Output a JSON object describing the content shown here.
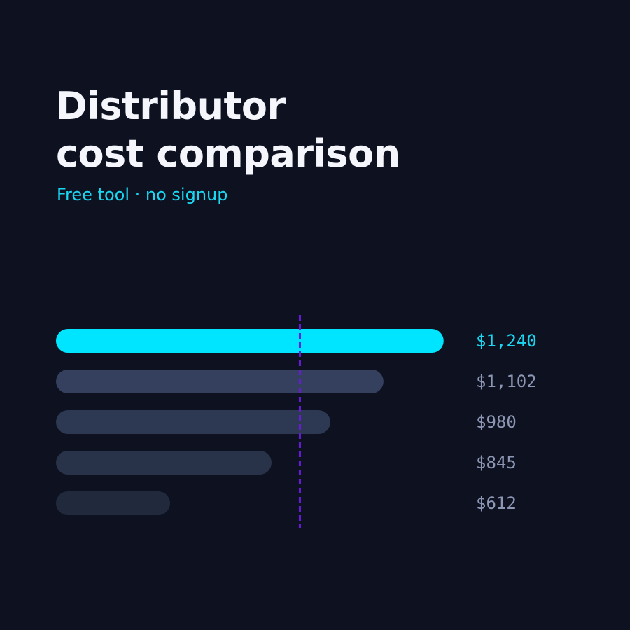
{
  "chart_data": {
    "type": "bar",
    "orientation": "horizontal",
    "title": "Distributor\ncost comparison",
    "subtitle": "Free tool · no signup",
    "values": [
      1240,
      1102,
      980,
      845,
      612
    ],
    "value_labels": [
      "$1,240",
      "$1,102",
      "$980",
      "$845",
      "$612"
    ],
    "colors": [
      "#00e5ff",
      "#34405e",
      "#2d3852",
      "#283249",
      "#212a3d"
    ],
    "label_colors": [
      "#1ad8f2",
      "#8d97b3",
      "#8d97b3",
      "#8d97b3",
      "#8d97b3"
    ],
    "xlim": [
      350,
      1250
    ],
    "reference_line": 910,
    "reference_color": "#6a1bd8"
  }
}
